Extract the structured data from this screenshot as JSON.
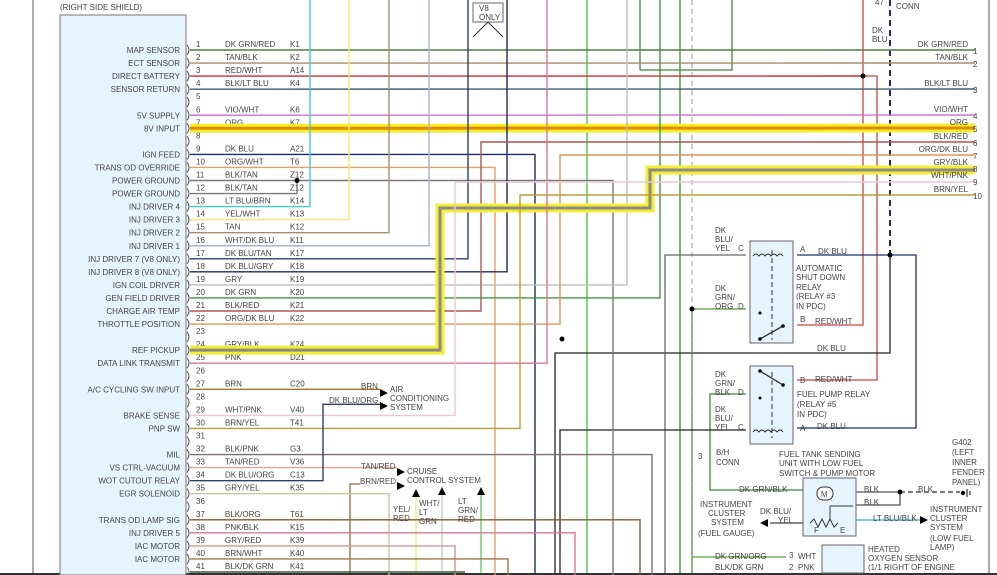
{
  "pcm": {
    "shield_label": "(RIGHT SIDE SHIELD)",
    "pins": [
      {
        "n": "1",
        "color": "DK GRN/RED",
        "circuit": "K1",
        "function": "MAP SENSOR",
        "hex": "#4f7f3f"
      },
      {
        "n": "2",
        "color": "TAN/BLK",
        "circuit": "K2",
        "function": "ECT SENSOR",
        "hex": "#a58e66"
      },
      {
        "n": "3",
        "color": "RED/WHT",
        "circuit": "A14",
        "function": "DIRECT BATTERY",
        "hex": "#cc2a2a"
      },
      {
        "n": "4",
        "color": "BLK/LT BLU",
        "circuit": "K4",
        "function": "SENSOR RETURN",
        "hex": "#3d5c72"
      },
      {
        "n": "5",
        "color": "",
        "circuit": "",
        "function": "",
        "hex": ""
      },
      {
        "n": "6",
        "color": "VIO/WHT",
        "circuit": "K6",
        "function": "5V SUPPLY",
        "hex": "#d070d0"
      },
      {
        "n": "7",
        "color": "ORG",
        "circuit": "K7",
        "function": "8V INPUT",
        "hex": "#e08a00",
        "highlight": true
      },
      {
        "n": "8",
        "color": "",
        "circuit": "",
        "function": "",
        "hex": ""
      },
      {
        "n": "9",
        "color": "DK BLU",
        "circuit": "A21",
        "function": "IGN FEED",
        "hex": "#1c2c6c"
      },
      {
        "n": "10",
        "color": "ORG/WHT",
        "circuit": "T6",
        "function": "TRANS OD OVERRIDE",
        "hex": "#e8a060"
      },
      {
        "n": "11",
        "color": "BLK/TAN",
        "circuit": "Z12",
        "function": "POWER GROUND",
        "hex": "#7a7a7a"
      },
      {
        "n": "12",
        "color": "BLK/TAN",
        "circuit": "Z12",
        "function": "POWER GROUND",
        "hex": "#7a7a7a"
      },
      {
        "n": "13",
        "color": "LT BLU/BRN",
        "circuit": "K14",
        "function": "INJ DRIVER 4",
        "hex": "#45c8d2"
      },
      {
        "n": "14",
        "color": "YEL/WHT",
        "circuit": "K13",
        "function": "INJ DRIVER 3",
        "hex": "#eeee66"
      },
      {
        "n": "15",
        "color": "TAN",
        "circuit": "K12",
        "function": "INJ DRIVER 2",
        "hex": "#a58e66"
      },
      {
        "n": "16",
        "color": "WHT/DK BLU",
        "circuit": "K11",
        "function": "INJ DRIVER 1",
        "hex": "#a9b3c9"
      },
      {
        "n": "17",
        "color": "DK BLU/TAN",
        "circuit": "K17",
        "function": "INJ DRIVER 7 (V8 ONLY)",
        "hex": "#2c3c72"
      },
      {
        "n": "18",
        "color": "DK BLU/GRY",
        "circuit": "K18",
        "function": "INJ DRIVER 8 (V8 ONLY)",
        "hex": "#1c2c5c"
      },
      {
        "n": "19",
        "color": "GRY",
        "circuit": "K19",
        "function": "IGN COIL DRIVER",
        "hex": "#bdbdbd"
      },
      {
        "n": "20",
        "color": "DK GRN",
        "circuit": "K20",
        "function": "GEN FIELD DRIVER",
        "hex": "#3a9a3a"
      },
      {
        "n": "21",
        "color": "BLK/RED",
        "circuit": "K21",
        "function": "CHARGE AIR TEMP",
        "hex": "#b05555"
      },
      {
        "n": "22",
        "color": "ORG/DK BLU",
        "circuit": "K22",
        "function": "THROTTLE POSITION",
        "hex": "#e09555"
      },
      {
        "n": "23",
        "color": "",
        "circuit": "",
        "function": "",
        "hex": ""
      },
      {
        "n": "24",
        "color": "GRY/BLK",
        "circuit": "K24",
        "function": "REF PICKUP",
        "hex": "#8a8a8a",
        "highlight": true
      },
      {
        "n": "25",
        "color": "PNK",
        "circuit": "D21",
        "function": "DATA LINK TRANSMIT",
        "hex": "#e07595"
      },
      {
        "n": "26",
        "color": "",
        "circuit": "",
        "function": "",
        "hex": ""
      },
      {
        "n": "27",
        "color": "BRN",
        "circuit": "C20",
        "function": "A/C CYCLING SW INPUT",
        "hex": "#a57525"
      },
      {
        "n": "28",
        "color": "",
        "circuit": "",
        "function": "",
        "hex": ""
      },
      {
        "n": "29",
        "color": "WHT/PNK",
        "circuit": "V40",
        "function": "BRAKE SENSE",
        "hex": "#ecc9d2"
      },
      {
        "n": "30",
        "color": "BRN/YEL",
        "circuit": "T41",
        "function": "PNP SW",
        "hex": "#bb9d35"
      },
      {
        "n": "31",
        "color": "",
        "circuit": "",
        "function": "",
        "hex": ""
      },
      {
        "n": "32",
        "color": "BLK/PNK",
        "circuit": "G3",
        "function": "MIL",
        "hex": "#7d6d75"
      },
      {
        "n": "33",
        "color": "TAN/RED",
        "circuit": "V36",
        "function": "VS CTRL-VACUUM",
        "hex": "#e3a595"
      },
      {
        "n": "34",
        "color": "DK BLU/ORG",
        "circuit": "C13",
        "function": "WOT CUTOUT RELAY",
        "hex": "#2c3c72"
      },
      {
        "n": "35",
        "color": "GRY/YEL",
        "circuit": "K35",
        "function": "EGR SOLENOID",
        "hex": "#c9c9a2"
      },
      {
        "n": "36",
        "color": "",
        "circuit": "",
        "function": "",
        "hex": ""
      },
      {
        "n": "37",
        "color": "BLK/ORG",
        "circuit": "T61",
        "function": "TRANS OD LAMP SIG",
        "hex": "#7d5d35"
      },
      {
        "n": "38",
        "color": "PNK/BLK",
        "circuit": "K15",
        "function": "INJ DRIVER 5",
        "hex": "#e07595"
      },
      {
        "n": "39",
        "color": "GRY/RED",
        "circuit": "K39",
        "function": "IAC MOTOR",
        "hex": "#d49595"
      },
      {
        "n": "40",
        "color": "BRN/WHT",
        "circuit": "K40",
        "function": "IAC MOTOR",
        "hex": "#a57545"
      },
      {
        "n": "41",
        "color": "BLK/DK GRN",
        "circuit": "K41",
        "function": "",
        "hex": "#3a5a3a"
      }
    ]
  },
  "right_connector": [
    {
      "n": "1",
      "color": "DK GRN/RED"
    },
    {
      "n": "2",
      "color": "TAN/BLK"
    },
    {
      "n": "3",
      "color": "BLK/LT BLU"
    },
    {
      "n": "4",
      "color": "VIO/WHT"
    },
    {
      "n": "5",
      "color": "ORG"
    },
    {
      "n": "6",
      "color": "BLK/RED"
    },
    {
      "n": "7",
      "color": "ORG/DK BLU"
    },
    {
      "n": "8",
      "color": "GRY/BLK"
    },
    {
      "n": "9",
      "color": "WHT/PNK"
    },
    {
      "n": "10",
      "color": "BRN/YEL"
    }
  ],
  "top": {
    "v8_only": [
      "V8",
      "ONLY"
    ],
    "conn_pin": "47",
    "conn_label": "CONN",
    "dk_blu": [
      "DK",
      "BLU"
    ]
  },
  "asd_relay": {
    "name": [
      "AUTOMATIC",
      "SHUT DOWN",
      "RELAY",
      "(RELAY #3",
      "IN PDC)"
    ],
    "pin_c": "C",
    "pin_c_wire": [
      "DK",
      "BLU/",
      "YEL"
    ],
    "pin_d": "D",
    "pin_d_wire": [
      "DK",
      "GRN/",
      "ORG"
    ],
    "pin_a": "A",
    "pin_a_wire": "DK BLU",
    "pin_b": "B",
    "pin_b_wire": "RED/WHT",
    "dk_blu_bus": "DK BLU"
  },
  "fuel_pump_relay": {
    "name": [
      "FUEL PUMP RELAY",
      "(RELAY #5",
      "IN PDC)"
    ],
    "pin_b": "B",
    "pin_b_wire": "RED/WHT",
    "pin_d": "D",
    "pin_d_wire": [
      "DK",
      "GRN/",
      "BLK"
    ],
    "pin_c": "C",
    "pin_c_wire": [
      "DK",
      "BLU/",
      "YEL"
    ],
    "pin_a": "A",
    "pin_a_wire": "DK BLU"
  },
  "bh_conn": {
    "pin": "3",
    "label": [
      "B/H",
      "CONN"
    ]
  },
  "fuel_sender": {
    "name": [
      "FUEL TANK SENDING",
      "UNIT WITH LOW FUEL",
      "SWITCH & PUMP MOTOR"
    ],
    "motor": "M",
    "in_wire": "DK GRN/BLK",
    "blk1": "BLK",
    "blk2": "BLK",
    "blk3": "BLK",
    "f": "F",
    "e": "E",
    "gauge_wire": [
      "DK BLU/",
      "YEL"
    ],
    "lamp_wire": "LT BLU/BLK",
    "cluster_gauge": [
      "INSTRUMENT",
      "CLUSTER",
      "SYSTEM",
      "(FUEL GAUGE)"
    ],
    "cluster_lamp": [
      "INSTRUMENT",
      "CLUSTER",
      "SYSTEM",
      "(LOW FUEL",
      "LAMP)"
    ],
    "ground": [
      "G402",
      "(LEFT",
      "INNER",
      "FENDER",
      "PANEL)"
    ]
  },
  "o2_sensor": {
    "name": [
      "HEATED",
      "OXYGEN SENSOR",
      "(1/1 RIGHT OF ENGINE"
    ],
    "w1": "DK GRN/ORG",
    "w1_pin": "3",
    "w1_lead": "WHT",
    "w2": "BLK/DK GRN",
    "w2_pin": "2",
    "w2_lead": "PNK"
  },
  "ac_system": {
    "brn": "BRN",
    "dkbluorg": "DK BLU/ORG",
    "name": [
      "AIR",
      "CONDITIONING",
      "SYSTEM"
    ]
  },
  "cruise": {
    "tanred": "TAN/RED",
    "brnred": "BRN/RED",
    "name": [
      "CRUISE",
      "CONTROL SYSTEM"
    ],
    "w1": [
      "YEL/",
      "RED"
    ],
    "w2": [
      "WHT/",
      "LT",
      "GRN"
    ],
    "w3": [
      "LT",
      "GRN/",
      "RED"
    ]
  }
}
